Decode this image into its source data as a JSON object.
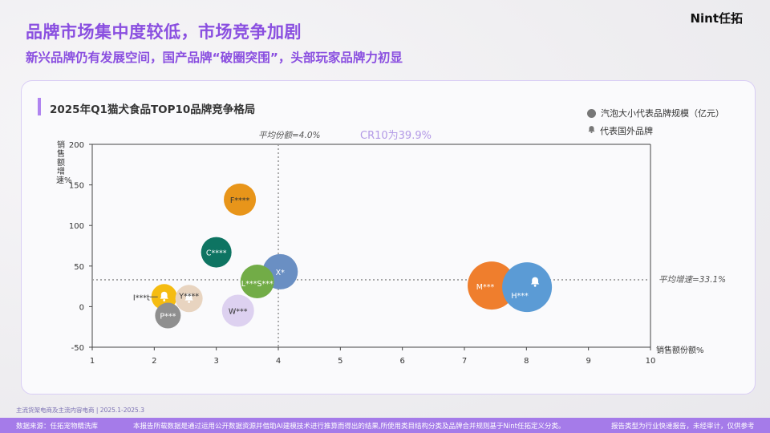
{
  "header": {
    "title": "品牌市场集中度较低，市场竞争加剧",
    "subtitle": "新兴品牌仍有发展空间，国产品牌“破圈突围”，头部玩家品牌力初显",
    "logo": "Nint任拓"
  },
  "panel": {
    "title": "2025年Q1猫犬食品TOP10品牌竞争格局",
    "legend": {
      "bubble": "汽泡大小代表品牌规模（亿元）",
      "bell": "代表国外品牌"
    },
    "cr10": "CR10为39.9%",
    "avg_share_label": "平均份额=4.0%",
    "avg_growth_label": "平均增速=33.1%"
  },
  "chart_data": {
    "type": "scatter",
    "subtype": "bubble",
    "title": "2025年Q1猫犬食品TOP10品牌竞争格局",
    "xlabel": "销售额份额%",
    "ylabel": "销售额增速%",
    "xlim": [
      1,
      10
    ],
    "ylim": [
      -50,
      200
    ],
    "xticks": [
      1,
      2,
      3,
      4,
      5,
      6,
      7,
      8,
      9,
      10
    ],
    "yticks": [
      -50,
      0,
      50,
      100,
      150,
      200
    ],
    "grid": false,
    "reference_lines": [
      {
        "axis": "x",
        "value": 4.0,
        "label": "平均份额=4.0%"
      },
      {
        "axis": "y",
        "value": 33.1,
        "label": "平均增速=33.1%"
      }
    ],
    "annotation": "CR10为39.9%",
    "legend": [
      "汽泡大小代表品牌规模（亿元）",
      "代表国外品牌"
    ],
    "points": [
      {
        "label": "F****",
        "x": 3.38,
        "y": 132,
        "size": 20,
        "color": "#e8951a",
        "foreign": false,
        "label_color": "#333333"
      },
      {
        "label": "C****",
        "x": 3.0,
        "y": 67,
        "size": 19,
        "color": "#0e7462",
        "foreign": false,
        "label_color": "#ffffff"
      },
      {
        "label": "X*",
        "x": 4.03,
        "y": 43,
        "size": 22,
        "color": "#6a8fc3",
        "foreign": false,
        "label_color": "#ffffff"
      },
      {
        "label": "L***S***",
        "x": 3.66,
        "y": 31,
        "size": 21,
        "color": "#72ac47",
        "foreign": false,
        "label_color": "#ffffff"
      },
      {
        "label": "W***",
        "x": 3.35,
        "y": -5,
        "size": 20,
        "color": "#ddd1f0",
        "foreign": false,
        "label_color": "#333333"
      },
      {
        "label": "I***t",
        "x": 2.16,
        "y": 12,
        "size": 16,
        "color": "#f5bc11",
        "foreign": true,
        "label_color": "#333333"
      },
      {
        "label": "Y****",
        "x": 2.56,
        "y": 10,
        "size": 17,
        "color": "#e8d4c0",
        "foreign": true,
        "label_color": "#333333"
      },
      {
        "label": "P***",
        "x": 2.22,
        "y": -11,
        "size": 16,
        "color": "#8f8f8f",
        "foreign": false,
        "label_color": "#ffffff"
      },
      {
        "label": "M***",
        "x": 7.44,
        "y": 26,
        "size": 30,
        "color": "#ef7e2d",
        "foreign": false,
        "label_color": "#ffffff"
      },
      {
        "label": "H***",
        "x": 8.01,
        "y": 24,
        "size": 31,
        "color": "#5b9bd5",
        "foreign": true,
        "label_color": "#ffffff"
      }
    ]
  },
  "footer": {
    "source_note": "主流货架电商及主流内容电商 | 2025.1-2025.3",
    "data_source": "数据来源：任拓宠物精洗库",
    "disclaimer": "本报告所载数据是通过运用公开数据资源并借助AI建模技术进行推算而得出的结果,所使用类目结构分类及品牌合并规则基于Nint任拓定义分类。",
    "report_type": "报告类型为行业快速报告，未经审计，仅供参考"
  }
}
